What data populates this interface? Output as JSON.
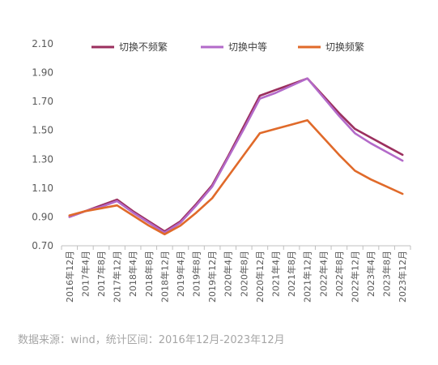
{
  "chart_data": {
    "type": "line",
    "x": [
      "2016年12月",
      "2017年4月",
      "2017年8月",
      "2017年12月",
      "2018年4月",
      "2018年8月",
      "2018年12月",
      "2019年4月",
      "2019年8月",
      "2019年12月",
      "2020年4月",
      "2020年8月",
      "2020年12月",
      "2021年4月",
      "2021年8月",
      "2021年12月",
      "2022年4月",
      "2022年8月",
      "2022年12月",
      "2023年4月",
      "2023年8月",
      "2023年12月"
    ],
    "series": [
      {
        "name": "切换不频繁",
        "color": "#9b2f5e",
        "values": [
          0.9,
          0.94,
          0.98,
          1.02,
          0.94,
          0.87,
          0.8,
          0.87,
          0.99,
          1.12,
          1.32,
          1.53,
          1.74,
          1.78,
          1.82,
          1.86,
          1.74,
          1.62,
          1.51,
          1.45,
          1.39,
          1.33
        ]
      },
      {
        "name": "切换中等",
        "color": "#b36ac9",
        "values": [
          0.9,
          0.94,
          0.97,
          1.01,
          0.93,
          0.86,
          0.79,
          0.86,
          0.98,
          1.11,
          1.31,
          1.51,
          1.72,
          1.76,
          1.81,
          1.86,
          1.73,
          1.6,
          1.48,
          1.41,
          1.35,
          1.29
        ]
      },
      {
        "name": "切换频繁",
        "color": "#e06a2a",
        "values": [
          0.91,
          0.94,
          0.96,
          0.98,
          0.91,
          0.84,
          0.78,
          0.84,
          0.93,
          1.03,
          1.18,
          1.33,
          1.48,
          1.51,
          1.54,
          1.57,
          1.45,
          1.33,
          1.22,
          1.16,
          1.11,
          1.06
        ]
      }
    ],
    "ylim": [
      0.7,
      2.1
    ],
    "yticks": [
      "2.10",
      "1.90",
      "1.70",
      "1.50",
      "1.30",
      "1.10",
      "0.90",
      "0.70"
    ],
    "grid": false,
    "legend_position": "top"
  },
  "source_note": "数据来源：wind，统计区间：2016年12月-2023年12月"
}
